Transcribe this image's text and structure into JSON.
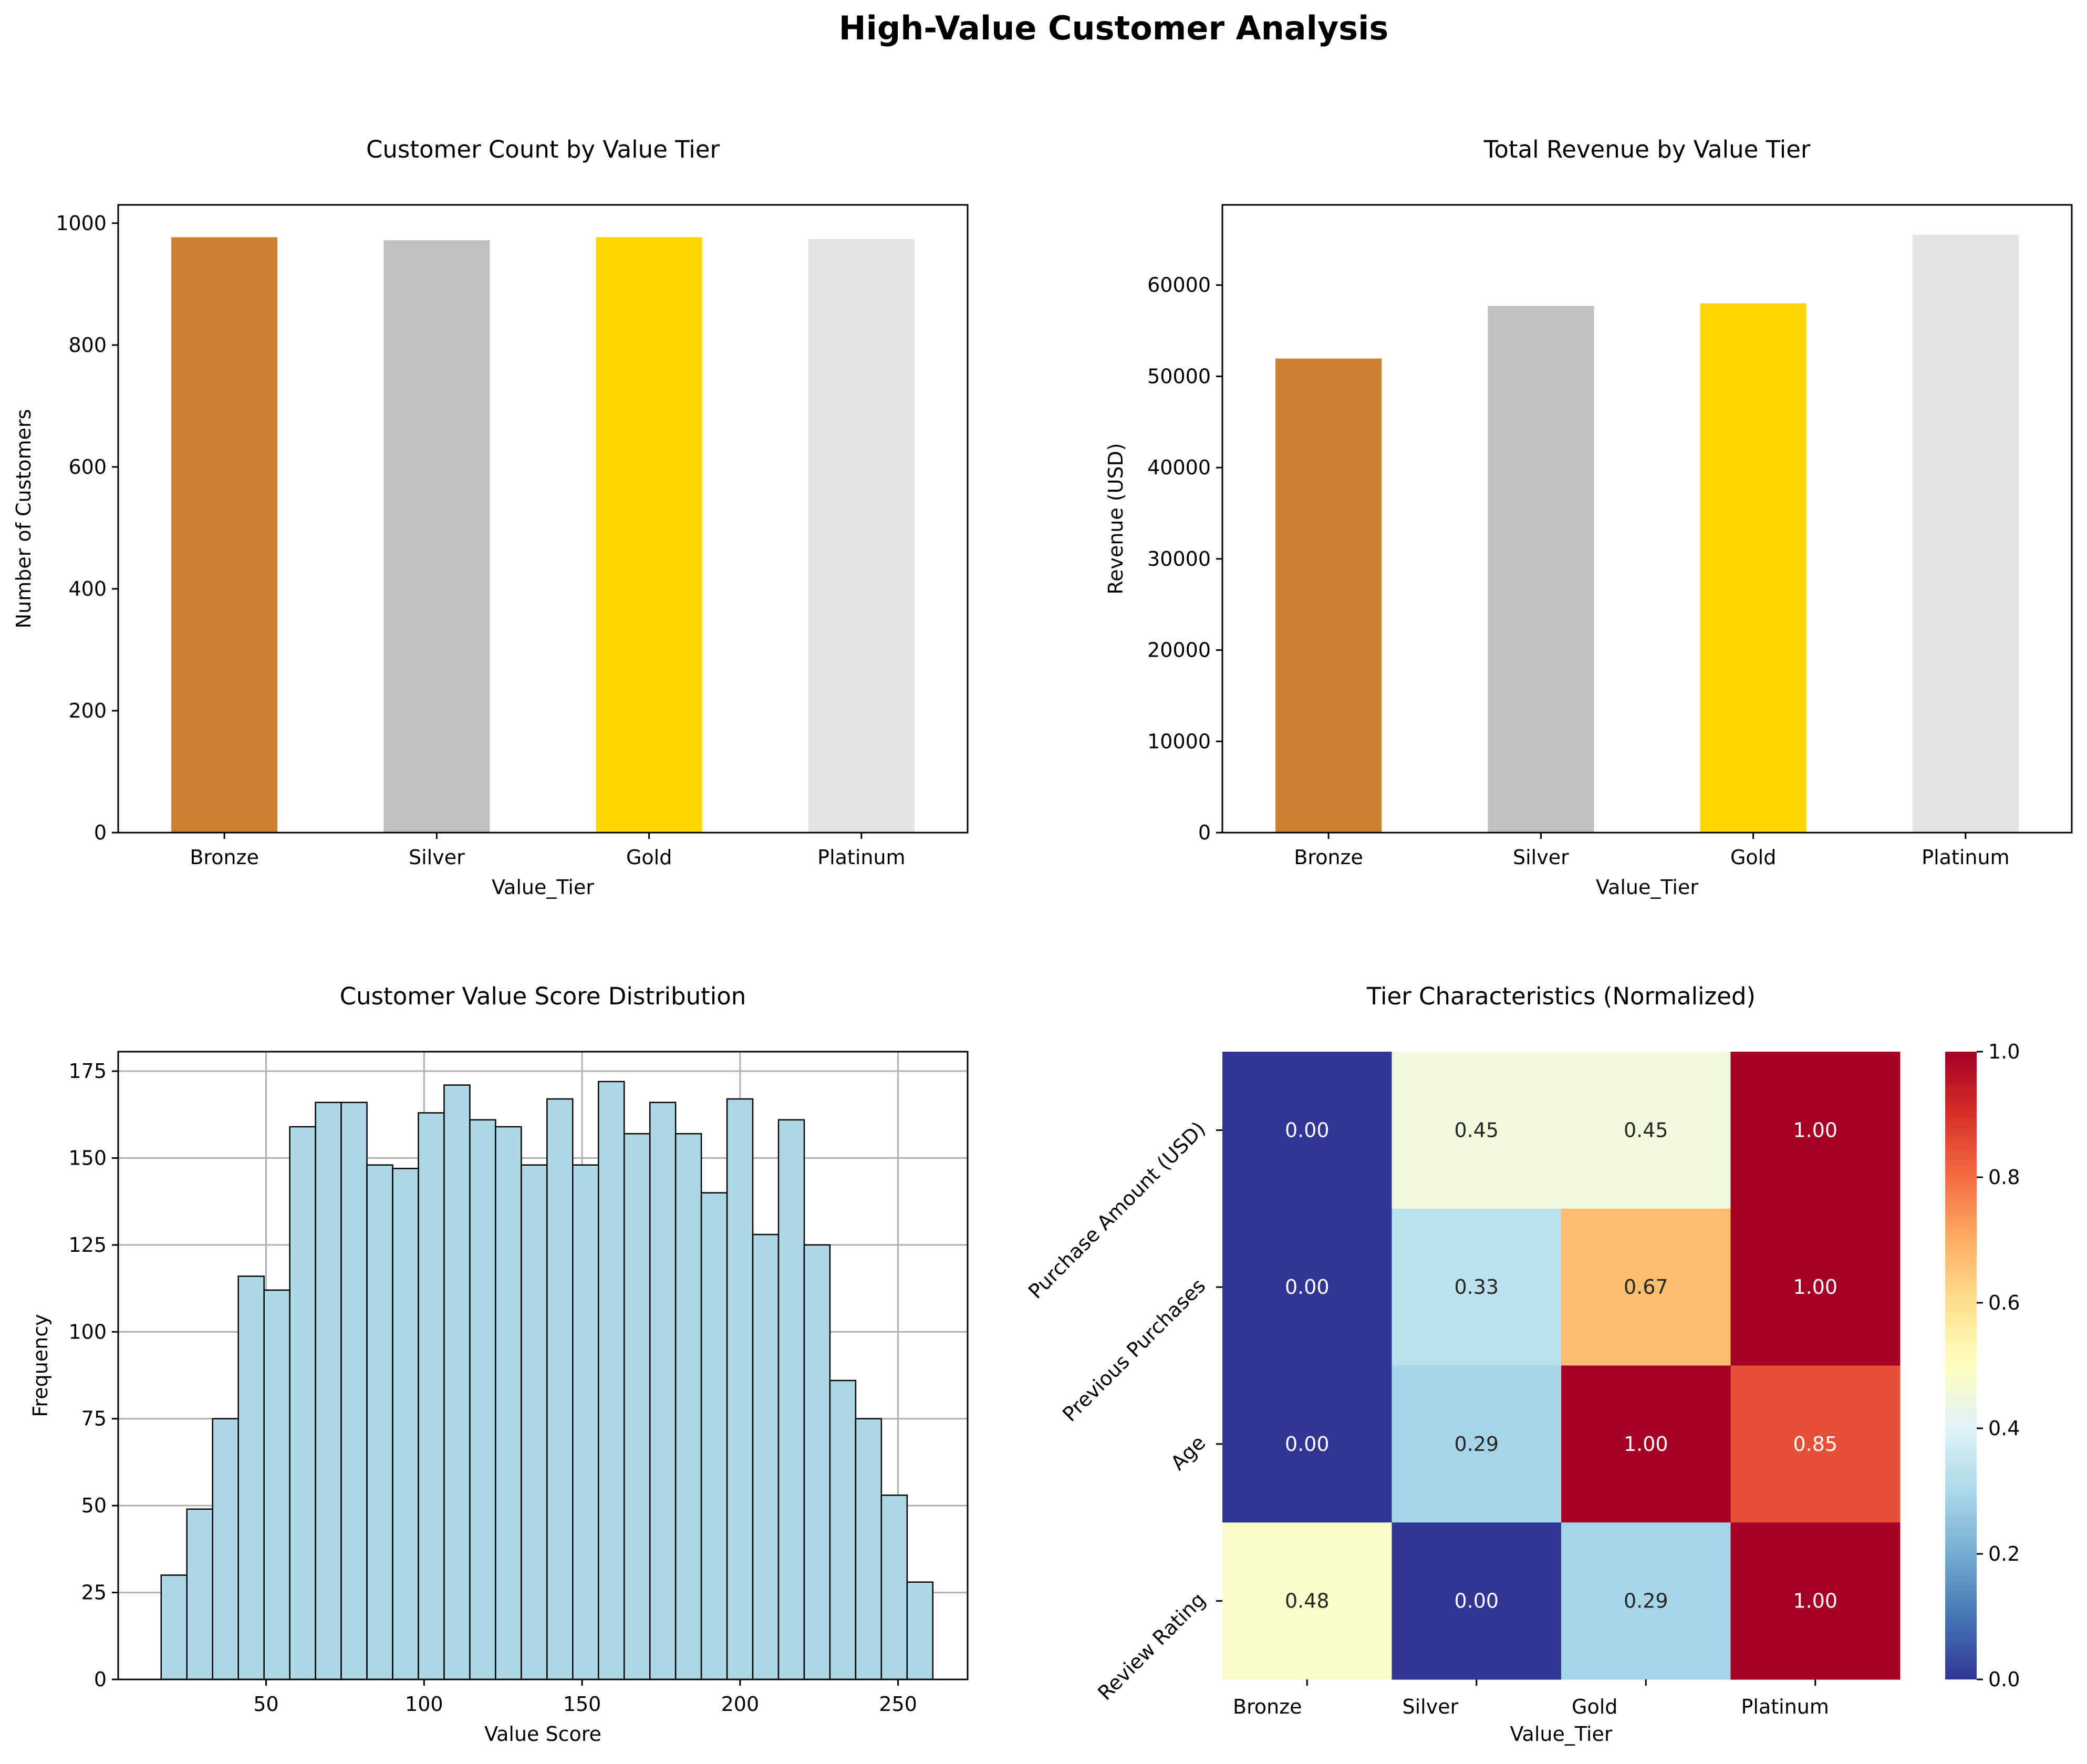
{
  "figure": {
    "title": "High-Value Customer Analysis"
  },
  "tier_colors": {
    "Bronze": "#cd7f32",
    "Silver": "#c0c0c0",
    "Gold": "#ffd700",
    "Platinum": "#e5e4e2"
  },
  "chart_data": [
    {
      "id": "count",
      "type": "bar",
      "title": "Customer Count by Value Tier",
      "xlabel": "Value_Tier",
      "ylabel": "Number of Customers",
      "categories": [
        "Bronze",
        "Silver",
        "Gold",
        "Platinum"
      ],
      "values": [
        977,
        972,
        977,
        974
      ],
      "ylim": [
        0,
        1030
      ],
      "yticks": [
        0,
        200,
        400,
        600,
        800,
        1000
      ],
      "colors": [
        "#cd7f32",
        "#c0c0c0",
        "#ffd700",
        "#e5e4e2"
      ],
      "grid": false
    },
    {
      "id": "revenue",
      "type": "bar",
      "title": "Total Revenue by Value Tier",
      "xlabel": "Value_Tier",
      "ylabel": "Revenue (USD)",
      "categories": [
        "Bronze",
        "Silver",
        "Gold",
        "Platinum"
      ],
      "values": [
        51950,
        57720,
        58010,
        65510
      ],
      "ylim": [
        0,
        68790
      ],
      "yticks": [
        0,
        10000,
        20000,
        30000,
        40000,
        50000,
        60000
      ],
      "colors": [
        "#cd7f32",
        "#c0c0c0",
        "#ffd700",
        "#e5e4e2"
      ],
      "grid": false
    },
    {
      "id": "histogram",
      "type": "bar",
      "title": "Customer Value Score Distribution",
      "xlabel": "Value Score",
      "ylabel": "Frequency",
      "bin_start": 16.8,
      "bin_width": 8.14,
      "values": [
        30,
        49,
        75,
        116,
        112,
        159,
        166,
        166,
        148,
        147,
        163,
        171,
        161,
        159,
        148,
        167,
        148,
        172,
        157,
        166,
        157,
        140,
        167,
        128,
        161,
        125,
        86,
        75,
        53,
        28
      ],
      "xlim": [
        3.2,
        272.0
      ],
      "ylim": [
        0,
        180.6
      ],
      "xticks": [
        50,
        100,
        150,
        200,
        250
      ],
      "yticks": [
        0,
        25,
        50,
        75,
        100,
        125,
        150,
        175
      ],
      "bar_color": "#add8e6",
      "edge_color": "#000000",
      "grid": true
    },
    {
      "id": "heatmap",
      "type": "heatmap",
      "title": "Tier Characteristics (Normalized)",
      "xlabel": "Value_Tier",
      "ylabel": "",
      "columns": [
        "Bronze",
        "Silver",
        "Gold",
        "Platinum"
      ],
      "rows": [
        "Purchase Amount (USD)",
        "Previous Purchases",
        "Age",
        "Review Rating"
      ],
      "values": [
        [
          0.0,
          0.45,
          0.45,
          1.0
        ],
        [
          0.0,
          0.33,
          0.67,
          1.0
        ],
        [
          0.0,
          0.29,
          1.0,
          0.85
        ],
        [
          0.48,
          0.0,
          0.29,
          1.0
        ]
      ],
      "annotations": [
        [
          "0.00",
          "0.45",
          "0.45",
          "1.00"
        ],
        [
          "0.00",
          "0.33",
          "0.67",
          "1.00"
        ],
        [
          "0.00",
          "0.29",
          "1.00",
          "0.85"
        ],
        [
          "0.48",
          "0.00",
          "0.29",
          "1.00"
        ]
      ],
      "colormap": "RdYlBu_r",
      "colorbar": {
        "range": [
          0,
          1
        ],
        "ticks": [
          "0.0",
          "0.2",
          "0.4",
          "0.6",
          "0.8",
          "1.0"
        ]
      }
    }
  ]
}
